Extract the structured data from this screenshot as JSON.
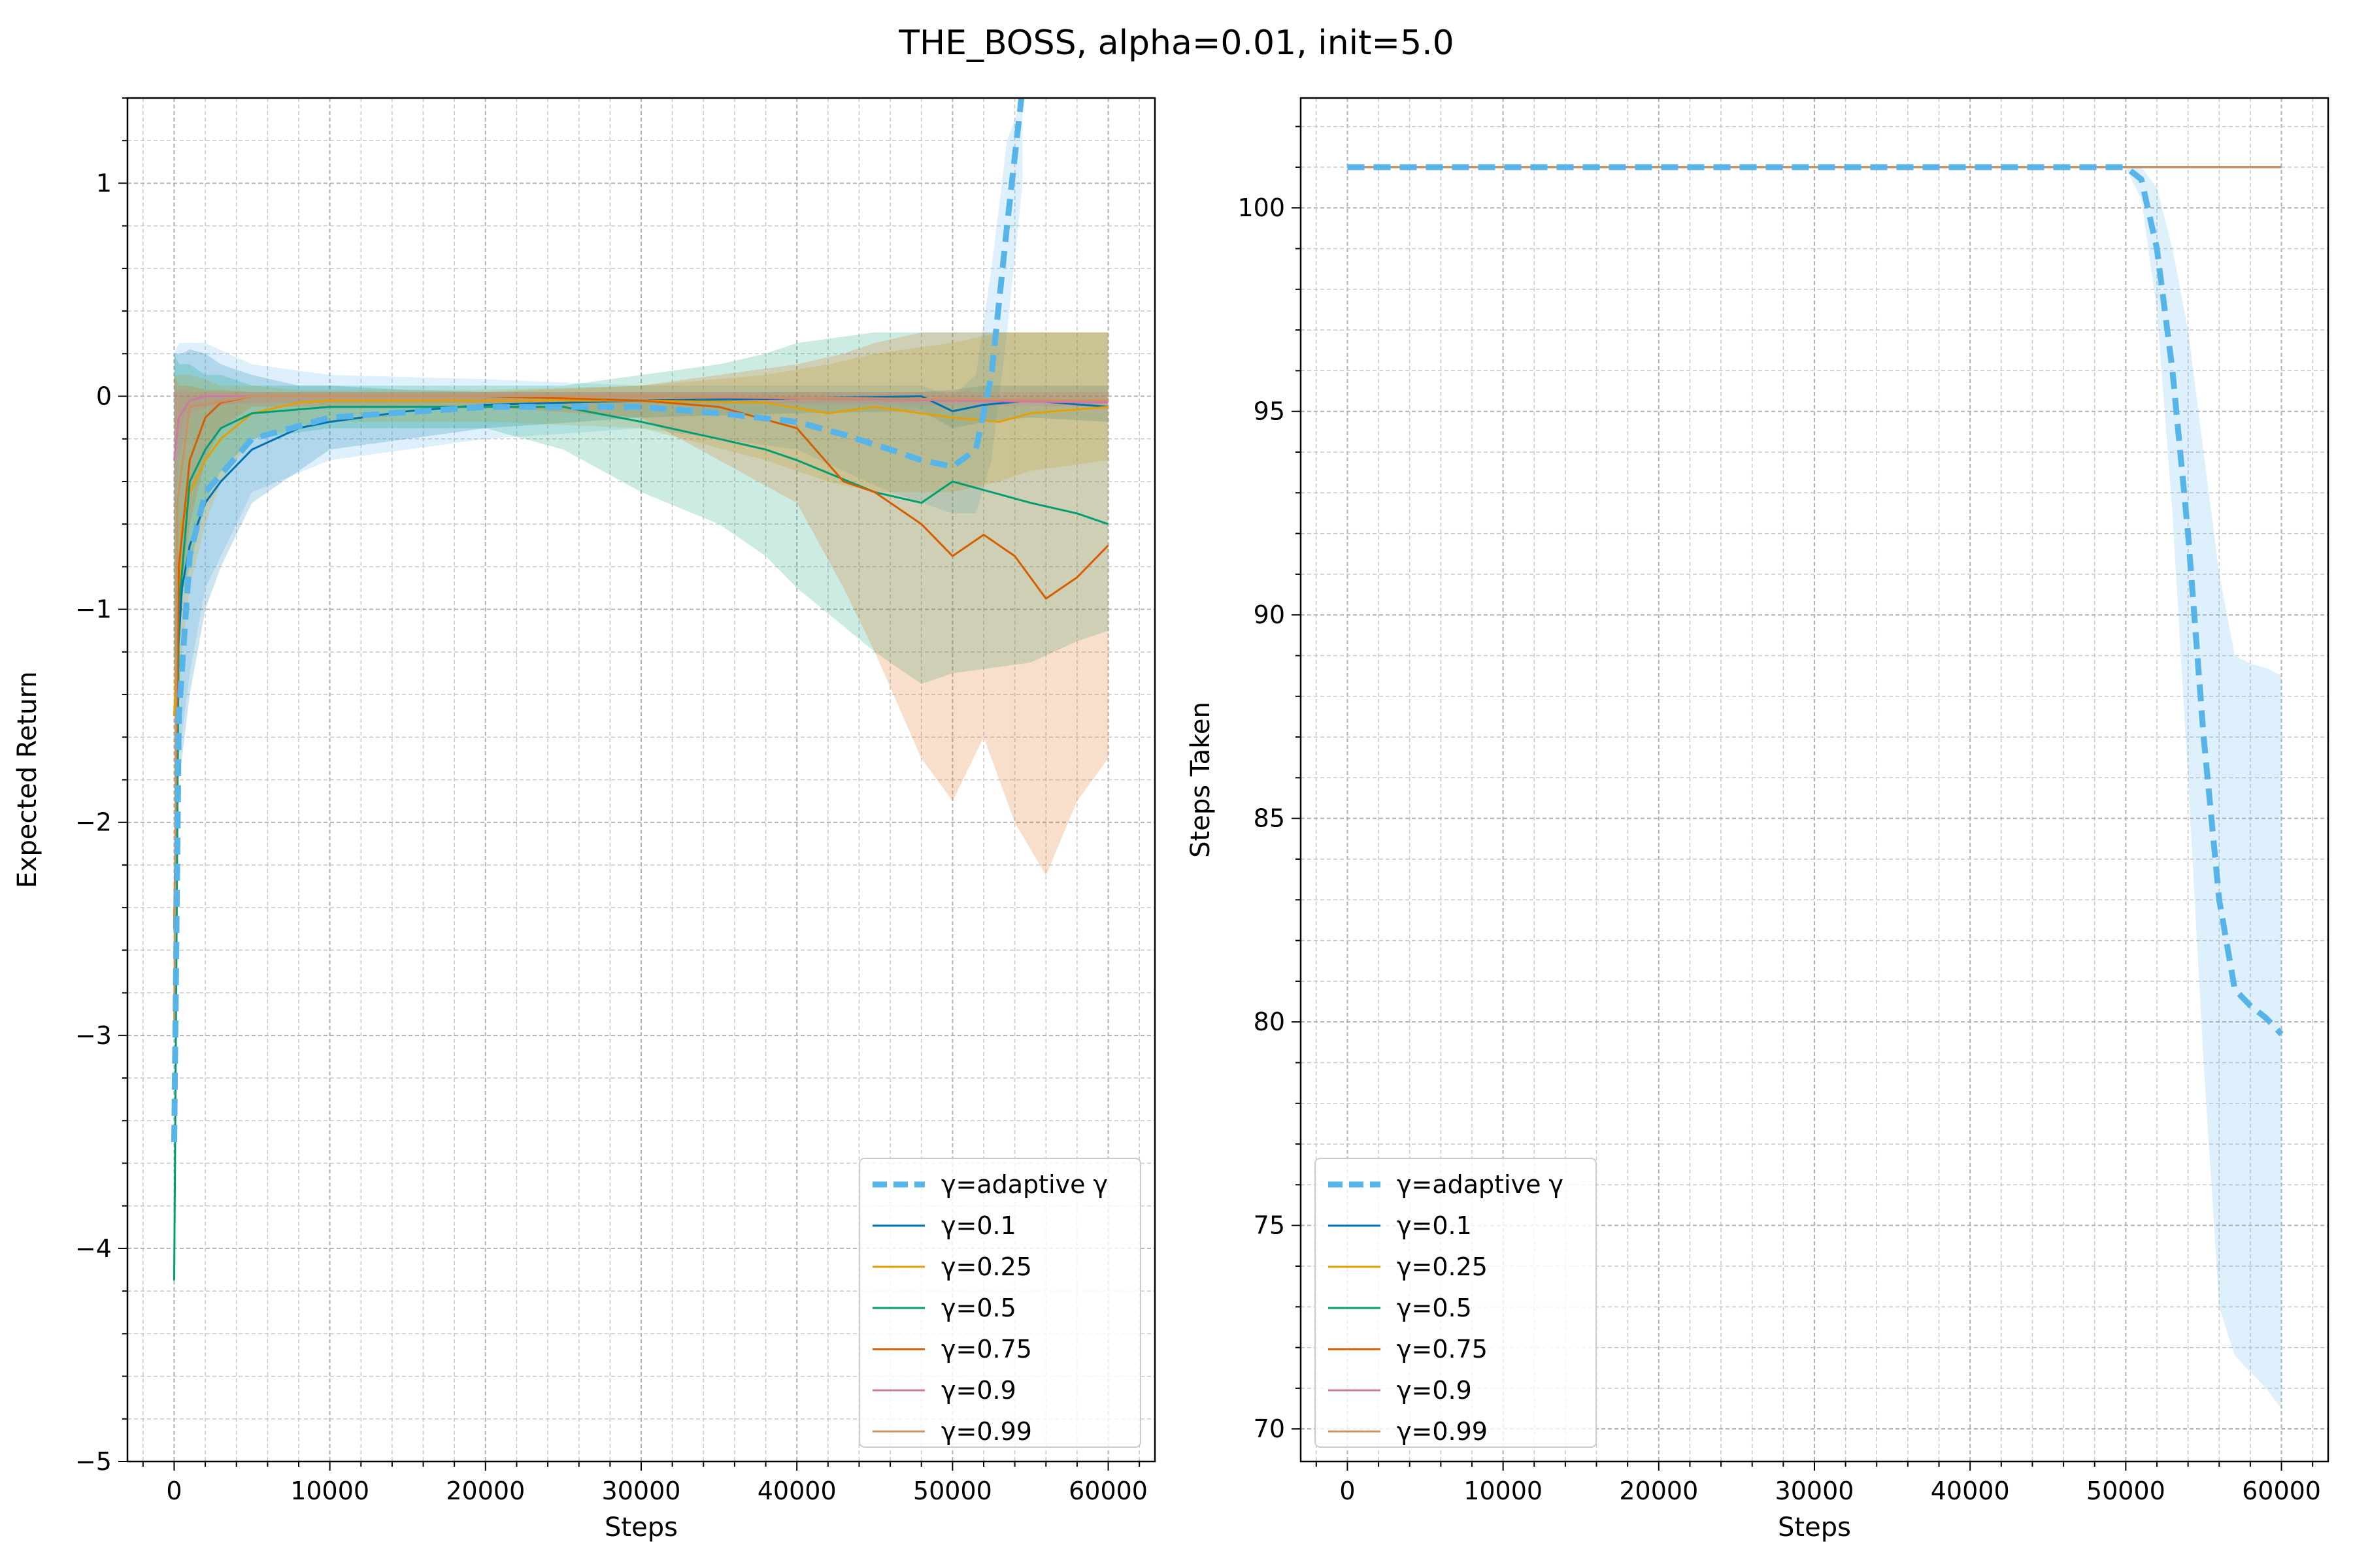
{
  "figure": {
    "title": "THE_BOSS, alpha=0.01, init=5.0"
  },
  "legend_entries": [
    "γ=adaptive γ",
    "γ=0.1",
    "γ=0.25",
    "γ=0.5",
    "γ=0.75",
    "γ=0.9",
    "γ=0.99"
  ],
  "series_colors": {
    "adaptive": "#56b4e9",
    "g0.1": "#0072b2",
    "g0.25": "#e69f00",
    "g0.5": "#009e73",
    "g0.75": "#d55e00",
    "g0.9": "#cc79a7",
    "g0.99": "#ca9161"
  },
  "chart_data": [
    {
      "type": "line",
      "title": "",
      "xlabel": "Steps",
      "ylabel": "Expected Return",
      "xlim": [
        -3000,
        63000
      ],
      "ylim": [
        -5,
        1.4
      ],
      "xticks": [
        0,
        10000,
        20000,
        30000,
        40000,
        50000,
        60000
      ],
      "xtick_labels": [
        "0",
        "10000",
        "20000",
        "30000",
        "40000",
        "50000",
        "60000"
      ],
      "yticks": [
        -5,
        -4,
        -3,
        -2,
        -1,
        0,
        1
      ],
      "ytick_labels": [
        "−5",
        "−4",
        "−3",
        "−2",
        "−1",
        "0",
        "1"
      ],
      "legend_position": "lower-right",
      "series": [
        {
          "name": "γ=adaptive γ",
          "color": "#56b4e9",
          "style": "dashed",
          "x": [
            0,
            300,
            1000,
            2000,
            5000,
            10000,
            20000,
            30000,
            35000,
            40000,
            43000,
            46000,
            48000,
            50000,
            51500,
            52500,
            53500,
            54500
          ],
          "y": [
            -3.5,
            -1.5,
            -0.75,
            -0.45,
            -0.2,
            -0.1,
            -0.05,
            -0.05,
            -0.08,
            -0.12,
            -0.18,
            -0.25,
            -0.3,
            -0.33,
            -0.25,
            0.1,
            0.8,
            1.45
          ],
          "band_upper": [
            0.2,
            0.25,
            0.25,
            0.25,
            0.15,
            0.1,
            0.08,
            0.05,
            0.05,
            0.05,
            0.05,
            0.05,
            0.05,
            0.0,
            0.1,
            0.6,
            1.2,
            1.4
          ],
          "band_lower": [
            -1.9,
            -1.7,
            -1.3,
            -0.9,
            -0.45,
            -0.3,
            -0.2,
            -0.15,
            -0.2,
            -0.25,
            -0.35,
            -0.45,
            -0.5,
            -0.55,
            -0.55,
            -0.3,
            0.3,
            1.0
          ]
        },
        {
          "name": "γ=0.1",
          "color": "#0072b2",
          "style": "solid",
          "x": [
            0,
            500,
            1000,
            2000,
            3000,
            5000,
            8000,
            10000,
            15000,
            20000,
            30000,
            40000,
            48000,
            50000,
            52000,
            55000,
            60000
          ],
          "y": [
            -1.5,
            -0.9,
            -0.7,
            -0.5,
            -0.4,
            -0.25,
            -0.15,
            -0.12,
            -0.07,
            -0.04,
            -0.02,
            -0.01,
            0.0,
            -0.07,
            -0.04,
            -0.02,
            -0.05
          ],
          "band_upper": [
            0.2,
            0.2,
            0.22,
            0.2,
            0.15,
            0.1,
            0.05,
            0.05,
            0.03,
            0.02,
            0.02,
            0.02,
            0.02,
            0.03,
            0.05,
            0.05,
            0.05
          ],
          "band_lower": [
            -1.9,
            -1.7,
            -1.4,
            -1.0,
            -0.8,
            -0.5,
            -0.35,
            -0.25,
            -0.2,
            -0.15,
            -0.1,
            -0.08,
            -0.07,
            -0.15,
            -0.12,
            -0.1,
            -0.12
          ]
        },
        {
          "name": "γ=0.25",
          "color": "#e69f00",
          "style": "solid",
          "x": [
            0,
            500,
            1000,
            2000,
            3000,
            5000,
            8000,
            10000,
            20000,
            30000,
            38000,
            42000,
            45000,
            50000,
            53000,
            55000,
            60000
          ],
          "y": [
            -1.5,
            -0.6,
            -0.45,
            -0.3,
            -0.2,
            -0.08,
            -0.03,
            -0.02,
            -0.02,
            -0.02,
            -0.03,
            -0.08,
            -0.05,
            -0.1,
            -0.12,
            -0.08,
            -0.05
          ],
          "band_upper": [
            0.1,
            0.1,
            0.1,
            0.08,
            0.05,
            0.05,
            0.03,
            0.03,
            0.03,
            0.05,
            0.1,
            0.15,
            0.2,
            0.25,
            0.3,
            0.3,
            0.3
          ],
          "band_lower": [
            -1.8,
            -1.2,
            -0.9,
            -0.6,
            -0.4,
            -0.2,
            -0.15,
            -0.12,
            -0.12,
            -0.15,
            -0.3,
            -0.4,
            -0.45,
            -0.45,
            -0.4,
            -0.35,
            -0.3
          ]
        },
        {
          "name": "γ=0.5",
          "color": "#009e73",
          "style": "solid",
          "x": [
            0,
            300,
            1000,
            2000,
            3000,
            5000,
            10000,
            20000,
            25000,
            30000,
            35000,
            38000,
            40000,
            45000,
            48000,
            50000,
            55000,
            58000,
            60000
          ],
          "y": [
            -4.15,
            -1.0,
            -0.4,
            -0.25,
            -0.15,
            -0.08,
            -0.05,
            -0.05,
            -0.05,
            -0.12,
            -0.2,
            -0.25,
            -0.3,
            -0.45,
            -0.5,
            -0.4,
            -0.5,
            -0.55,
            -0.6
          ],
          "band_upper": [
            0.2,
            0.15,
            0.15,
            0.1,
            0.1,
            0.05,
            0.05,
            0.05,
            0.05,
            0.1,
            0.15,
            0.2,
            0.25,
            0.3,
            0.3,
            0.3,
            0.3,
            0.3,
            0.3
          ],
          "band_lower": [
            -1.3,
            -1.0,
            -0.8,
            -0.5,
            -0.35,
            -0.2,
            -0.15,
            -0.15,
            -0.25,
            -0.45,
            -0.6,
            -0.75,
            -0.9,
            -1.2,
            -1.35,
            -1.3,
            -1.25,
            -1.15,
            -1.1
          ]
        },
        {
          "name": "γ=0.75",
          "color": "#d55e00",
          "style": "solid",
          "x": [
            0,
            300,
            1000,
            2000,
            3000,
            5000,
            10000,
            20000,
            30000,
            35000,
            40000,
            43000,
            45000,
            48000,
            50000,
            52000,
            54000,
            56000,
            58000,
            60000
          ],
          "y": [
            -2.5,
            -0.8,
            -0.3,
            -0.1,
            -0.03,
            0.0,
            0.0,
            0.0,
            -0.02,
            -0.05,
            -0.15,
            -0.4,
            -0.45,
            -0.6,
            -0.75,
            -0.65,
            -0.75,
            -0.95,
            -0.85,
            -0.7
          ],
          "band_upper": [
            0.1,
            0.05,
            0.05,
            0.03,
            0.03,
            0.02,
            0.02,
            0.02,
            0.05,
            0.1,
            0.15,
            0.2,
            0.25,
            0.3,
            0.3,
            0.3,
            0.3,
            0.3,
            0.3,
            0.3
          ],
          "band_lower": [
            -1.5,
            -1.0,
            -0.6,
            -0.3,
            -0.15,
            -0.05,
            -0.05,
            -0.05,
            -0.1,
            -0.3,
            -0.5,
            -0.9,
            -1.2,
            -1.7,
            -1.9,
            -1.6,
            -2.0,
            -2.25,
            -1.9,
            -1.7
          ]
        },
        {
          "name": "γ=0.9",
          "color": "#cc79a7",
          "style": "solid",
          "x": [
            0,
            300,
            1000,
            2000,
            5000,
            10000,
            30000,
            60000
          ],
          "y": [
            -0.3,
            -0.1,
            -0.02,
            0.0,
            0.0,
            0.0,
            0.0,
            -0.03
          ],
          "band_upper": [
            0.05,
            0.03,
            0.02,
            0.02,
            0.02,
            0.02,
            0.02,
            0.02
          ],
          "band_lower": [
            -0.6,
            -0.3,
            -0.08,
            -0.05,
            -0.03,
            -0.03,
            -0.03,
            -0.05
          ]
        },
        {
          "name": "γ=0.99",
          "color": "#ca9161",
          "style": "solid",
          "x": [
            0,
            200,
            1000,
            5000,
            30000,
            60000
          ],
          "y": [
            -3.0,
            -0.5,
            -0.05,
            0.0,
            0.0,
            -0.02
          ],
          "band_upper": [
            0.02,
            0.02,
            0.02,
            0.02,
            0.02,
            0.02
          ],
          "band_lower": [
            -0.3,
            -0.2,
            -0.05,
            -0.03,
            -0.03,
            -0.03
          ]
        }
      ]
    },
    {
      "type": "line",
      "title": "",
      "xlabel": "Steps",
      "ylabel": "Steps Taken",
      "xlim": [
        -3000,
        63000
      ],
      "ylim": [
        69.2,
        102.7
      ],
      "xticks": [
        0,
        10000,
        20000,
        30000,
        40000,
        50000,
        60000
      ],
      "xtick_labels": [
        "0",
        "10000",
        "20000",
        "30000",
        "40000",
        "50000",
        "60000"
      ],
      "yticks": [
        70,
        75,
        80,
        85,
        90,
        95,
        100
      ],
      "ytick_labels": [
        "70",
        "75",
        "80",
        "85",
        "90",
        "95",
        "100"
      ],
      "legend_position": "lower-left",
      "series": [
        {
          "name": "γ=adaptive γ",
          "color": "#56b4e9",
          "style": "dashed",
          "x": [
            0,
            50000,
            51000,
            52000,
            53000,
            54000,
            55000,
            56000,
            57000,
            58000,
            59000,
            60000
          ],
          "y": [
            101,
            101,
            100.7,
            99,
            96,
            92,
            87,
            83,
            80.8,
            80.4,
            80.1,
            79.7
          ],
          "band_upper": [
            101,
            101,
            101,
            100.5,
            99,
            97,
            94,
            91,
            89,
            88.8,
            88.7,
            88.5
          ],
          "band_lower": [
            101,
            101,
            100.2,
            97.5,
            92.5,
            86,
            79,
            73,
            71.8,
            71.4,
            71.0,
            70.5
          ]
        },
        {
          "name": "γ=0.1",
          "color": "#0072b2",
          "style": "solid",
          "x": [
            0,
            60000
          ],
          "y": [
            101,
            101
          ]
        },
        {
          "name": "γ=0.25",
          "color": "#e69f00",
          "style": "solid",
          "x": [
            0,
            60000
          ],
          "y": [
            101,
            101
          ]
        },
        {
          "name": "γ=0.5",
          "color": "#009e73",
          "style": "solid",
          "x": [
            0,
            60000
          ],
          "y": [
            101,
            101
          ]
        },
        {
          "name": "γ=0.75",
          "color": "#d55e00",
          "style": "solid",
          "x": [
            0,
            60000
          ],
          "y": [
            101,
            101
          ]
        },
        {
          "name": "γ=0.9",
          "color": "#cc79a7",
          "style": "solid",
          "x": [
            0,
            60000
          ],
          "y": [
            101,
            101
          ]
        },
        {
          "name": "γ=0.99",
          "color": "#ca9161",
          "style": "solid",
          "x": [
            0,
            60000
          ],
          "y": [
            101,
            101
          ]
        }
      ]
    }
  ]
}
